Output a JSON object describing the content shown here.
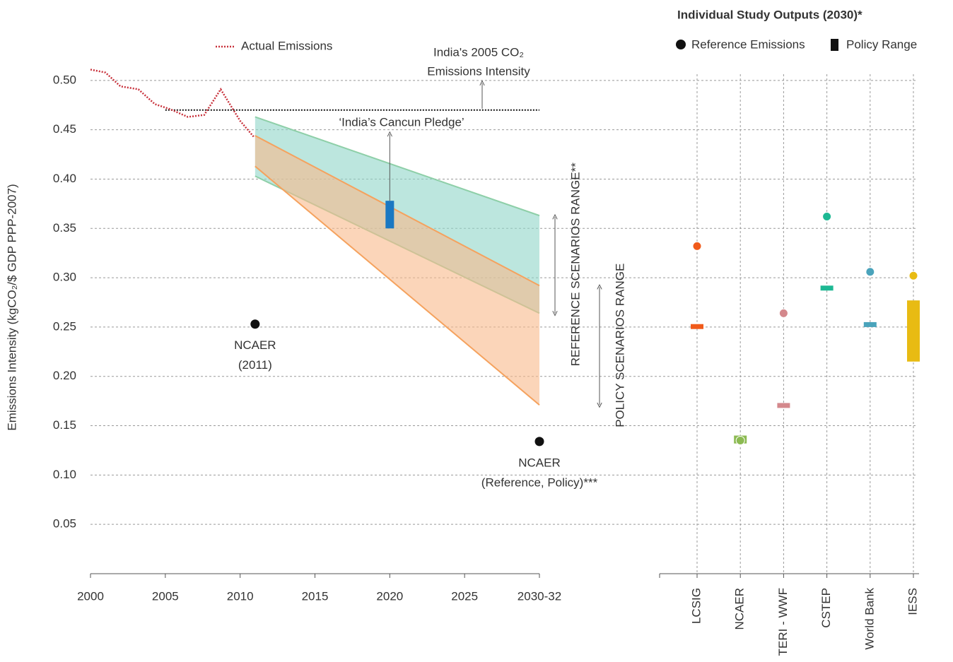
{
  "chart_data": [
    {
      "type": "line",
      "ylabel": "Emissions Intensity (kgCO₂/$ GDP PPP-2007)",
      "xlim": [
        2000,
        2030
      ],
      "ylim": [
        0,
        0.55
      ],
      "xticks": [
        2000,
        2005,
        2010,
        2015,
        2020,
        2025,
        {
          "value": 2030,
          "label": "2030-32"
        }
      ],
      "yticks": [
        0.05,
        {
          "value": 0.1,
          "label": "0.10"
        },
        0.15,
        {
          "value": 0.2,
          "label": "0.20"
        },
        0.25,
        {
          "value": 0.3,
          "label": "0.30"
        },
        0.35,
        {
          "value": 0.4,
          "label": "0.40"
        },
        0.45,
        {
          "value": 0.5,
          "label": "0.50"
        }
      ],
      "grid": true,
      "series": [
        {
          "name": "Actual Emissions",
          "color": "#c8323c",
          "x": [
            2000,
            2001,
            2002,
            2003.2,
            2004.3,
            2005.3,
            2006.5,
            2007.6,
            2008.7,
            2010,
            2010.9
          ],
          "values": [
            0.511,
            0.508,
            0.494,
            0.491,
            0.476,
            0.471,
            0.463,
            0.465,
            0.491,
            0.459,
            0.443
          ]
        }
      ],
      "reference_line": {
        "label": [
          "India's 2005 CO₂",
          "Emissions Intensity"
        ],
        "value": 0.47,
        "x": [
          2005,
          2030
        ],
        "color": "#111111"
      },
      "bands": [
        {
          "label": "REFERENCE SCENARIOS RANGE**",
          "color": "#8fd6c8",
          "edge_color": "#8ecfa8",
          "x": [
            2011,
            2030
          ],
          "upper": [
            0.463,
            0.363
          ],
          "lower": [
            0.403,
            0.264
          ]
        },
        {
          "label": "POLICY SCENARIOS RANGE",
          "color": "#f9b98a",
          "edge_color": "#f5a25e",
          "x": [
            2011,
            2030
          ],
          "upper": [
            0.444,
            0.292
          ],
          "lower": [
            0.413,
            0.171
          ]
        }
      ],
      "pledge": {
        "label": "‘India’s Cancun Pledge’",
        "x": 2020,
        "low": 0.35,
        "high": 0.378,
        "color": "#1a78c2"
      },
      "points": [
        {
          "label": [
            "NCAER",
            "(2011)"
          ],
          "x": 2011,
          "value": 0.253,
          "color": "#111111"
        },
        {
          "label": [
            "NCAER",
            "(Reference, Policy)***"
          ],
          "x": 2030,
          "value": 0.134,
          "color": "#111111"
        }
      ]
    },
    {
      "type": "dot",
      "title": "Individual Study Outputs (2030)*",
      "ylim": [
        0,
        0.55
      ],
      "categories": [
        "LCSIG",
        "NCAER",
        "TERI - WWF",
        "CSTEP",
        "World Bank",
        "IESS"
      ],
      "colors": [
        "#f05a1a",
        "#8cba52",
        "#d4888c",
        "#1db893",
        "#4aa3bb",
        "#e8bb13"
      ],
      "series": [
        {
          "name": "Reference Emissions",
          "values": [
            0.332,
            0.135,
            0.264,
            0.362,
            0.306,
            0.302
          ]
        },
        {
          "name": "Policy Range",
          "low": [
            0.248,
            0.132,
            0.168,
            0.287,
            0.25,
            0.215
          ],
          "high": [
            0.253,
            0.14,
            0.173,
            0.292,
            0.255,
            0.277
          ]
        }
      ]
    }
  ]
}
